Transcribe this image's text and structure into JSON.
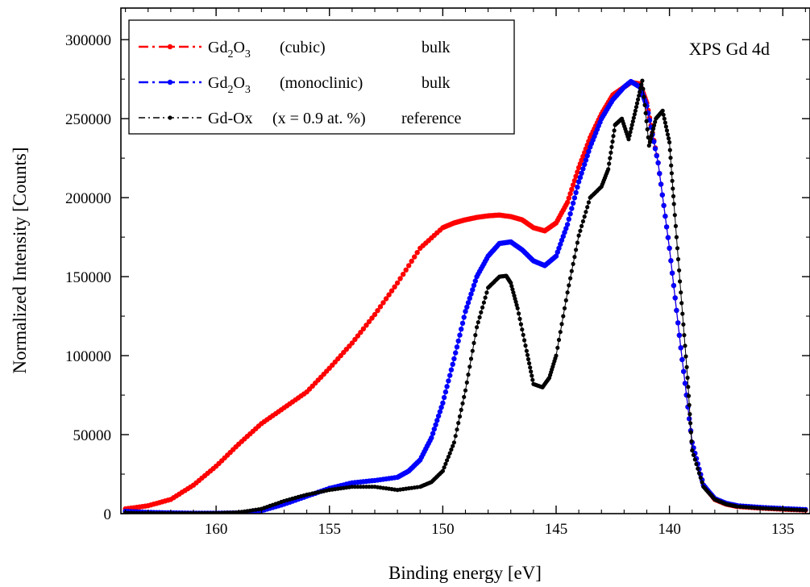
{
  "chart_data": {
    "type": "line",
    "annotation": "XPS Gd 4d",
    "xlabel": "Binding energy [eV]",
    "ylabel": "Normalized Intensity [Counts]",
    "xlim": [
      164.2,
      133.8
    ],
    "ylim": [
      0,
      320000
    ],
    "x_reversed": true,
    "x_ticks": [
      160,
      155,
      150,
      145,
      140,
      135
    ],
    "y_ticks": [
      0,
      50000,
      100000,
      150000,
      200000,
      250000,
      300000
    ],
    "legend_position": "top-left",
    "series": [
      {
        "legend": {
          "sym": "Gd",
          "sub1": "2",
          "mid": "O",
          "sub2": "3",
          "desc": "(cubic)",
          "tag": "bulk"
        },
        "color": "#ff0000",
        "marker_size": 3.2,
        "line_width": 1.2,
        "dash": "",
        "x": [
          164,
          163,
          162,
          161,
          160,
          159,
          158,
          157,
          156,
          155,
          154,
          153,
          152,
          151,
          150,
          149.5,
          149,
          148.5,
          148,
          147.5,
          147,
          146.5,
          146,
          145.5,
          145,
          144.5,
          144,
          143.5,
          143,
          142.5,
          142,
          141.7,
          141.3,
          141,
          140.5,
          140,
          139.5,
          139,
          138.5,
          138,
          137.5,
          137,
          136,
          135,
          134
        ],
        "y": [
          3000,
          5000,
          9000,
          18000,
          30000,
          44000,
          57000,
          67000,
          77000,
          92000,
          108000,
          126000,
          146000,
          168000,
          181000,
          184000,
          186000,
          187500,
          188500,
          189000,
          188000,
          186000,
          181000,
          179000,
          184000,
          197000,
          219000,
          238000,
          253000,
          265000,
          270000,
          273000,
          272000,
          260000,
          222000,
          168000,
          105000,
          45000,
          18000,
          9000,
          6000,
          4500,
          3500,
          2800,
          2200
        ]
      },
      {
        "legend": {
          "sym": "Gd",
          "sub1": "2",
          "mid": "O",
          "sub2": "3",
          "desc": "(monoclinic)",
          "tag": "bulk"
        },
        "color": "#0000ff",
        "marker_size": 3.2,
        "line_width": 1.2,
        "dash": "",
        "x": [
          164,
          163,
          162,
          161,
          160,
          159,
          158,
          157,
          156,
          155,
          154,
          153,
          152,
          151.5,
          151,
          150.5,
          150,
          149.5,
          149,
          148.5,
          148,
          147.5,
          147,
          146.5,
          146,
          145.5,
          145,
          144.5,
          144,
          143.5,
          143,
          142.5,
          142,
          141.7,
          141.3,
          141,
          140.5,
          140,
          139.5,
          139,
          138.5,
          138,
          137.5,
          137,
          136,
          135,
          134
        ],
        "y": [
          1500,
          800,
          500,
          300,
          300,
          500,
          1800,
          6000,
          11000,
          16000,
          19500,
          21000,
          23000,
          27000,
          34000,
          48000,
          70000,
          98000,
          128000,
          150000,
          163000,
          171000,
          172000,
          167000,
          160000,
          157000,
          163000,
          183000,
          210000,
          232000,
          250000,
          262000,
          270000,
          273500,
          270000,
          258000,
          222000,
          168000,
          105000,
          45000,
          18000,
          9500,
          6500,
          5000,
          4000,
          3200,
          2600
        ]
      },
      {
        "legend": {
          "sym": "Gd-Ox",
          "sub1": "",
          "mid": "",
          "sub2": "",
          "desc": "(x = 0.9 at. %)",
          "tag": "reference"
        },
        "color": "#000000",
        "marker_size": 2.6,
        "line_width": 1,
        "dash": "",
        "x": [
          164,
          163,
          162,
          161,
          160,
          159,
          158,
          157,
          156,
          155,
          154,
          153,
          152,
          151,
          150.5,
          150,
          149.5,
          149,
          148.5,
          148,
          147.5,
          147.2,
          147,
          146.7,
          146.3,
          146,
          145.6,
          145.3,
          145,
          144.5,
          144,
          143.5,
          143,
          142.7,
          142.4,
          142.1,
          141.8,
          141.5,
          141.2,
          140.9,
          140.6,
          140.3,
          140,
          139.8,
          139.5,
          139.2,
          139,
          138.5,
          138,
          137.5,
          137,
          136,
          135,
          134
        ],
        "y": [
          500,
          300,
          200,
          200,
          300,
          800,
          3000,
          8000,
          12000,
          15000,
          17000,
          17000,
          15000,
          17000,
          20000,
          27000,
          45000,
          78000,
          118000,
          143000,
          150000,
          150500,
          146000,
          130000,
          103000,
          82000,
          80000,
          86000,
          100000,
          140000,
          176000,
          200000,
          207000,
          218000,
          246000,
          250000,
          237000,
          255000,
          274000,
          233000,
          250000,
          255000,
          235000,
          196000,
          140000,
          86000,
          40000,
          17000,
          9000,
          6000,
          4500,
          3500,
          2800,
          2200
        ]
      }
    ]
  }
}
